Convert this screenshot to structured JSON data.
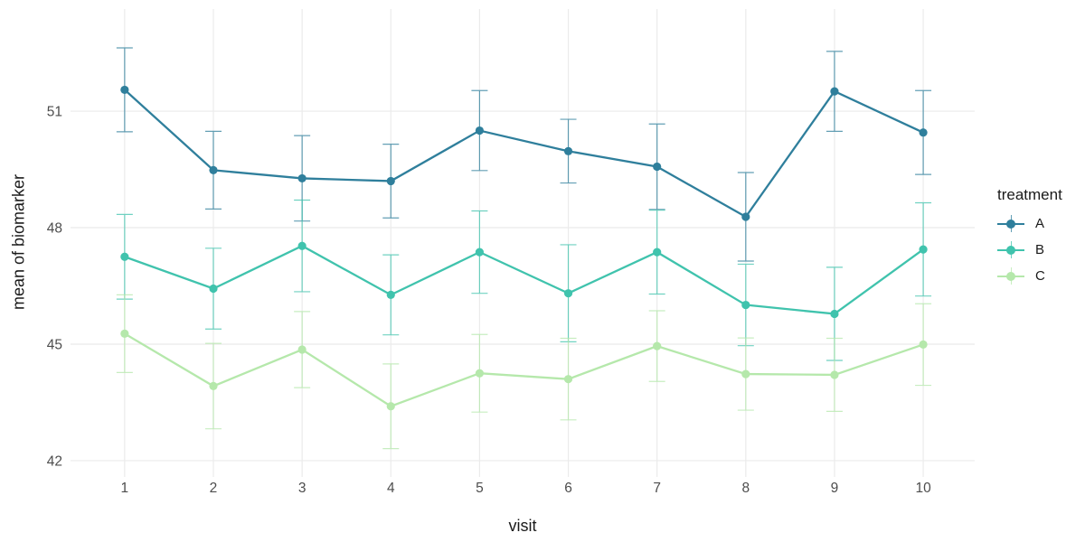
{
  "figure": {
    "background": "#ffffff",
    "grid_color": "#ebebeb",
    "tick_label_color": "#4d4d4d",
    "axis_title_color": "#1a1a1a"
  },
  "chart_data": {
    "type": "line",
    "title": "",
    "xlabel": "visit",
    "ylabel": "mean of biomarker",
    "x": [
      1,
      2,
      3,
      4,
      5,
      6,
      7,
      8,
      9,
      10
    ],
    "xticks": [
      1,
      2,
      3,
      4,
      5,
      6,
      7,
      8,
      9,
      10
    ],
    "yticks": [
      42,
      45,
      48,
      51
    ],
    "xlim": [
      0.39,
      10.58
    ],
    "ylim": [
      41.58,
      53.63
    ],
    "grid": true,
    "error_bars": true,
    "legend": {
      "title": "treatment",
      "position": "right"
    },
    "series": [
      {
        "name": "A",
        "color": "#2f7f9c",
        "values": [
          51.55,
          49.48,
          49.27,
          49.2,
          50.5,
          49.97,
          49.57,
          48.28,
          51.51,
          50.45
        ],
        "err": [
          1.08,
          1.0,
          1.1,
          0.95,
          1.03,
          0.82,
          1.1,
          1.14,
          1.03,
          1.08
        ]
      },
      {
        "name": "B",
        "color": "#40c3ad",
        "values": [
          47.25,
          46.43,
          47.53,
          46.27,
          47.37,
          46.31,
          47.37,
          46.01,
          45.78,
          47.44
        ],
        "err": [
          1.09,
          1.04,
          1.18,
          1.03,
          1.06,
          1.25,
          1.08,
          1.05,
          1.2,
          1.2
        ]
      },
      {
        "name": "C",
        "color": "#b5e8ab",
        "values": [
          45.27,
          43.92,
          44.86,
          43.4,
          44.25,
          44.1,
          44.95,
          44.23,
          44.21,
          44.99
        ],
        "err": [
          1.0,
          1.1,
          0.98,
          1.09,
          1.0,
          1.05,
          0.91,
          0.93,
          0.94,
          1.05
        ]
      }
    ]
  }
}
